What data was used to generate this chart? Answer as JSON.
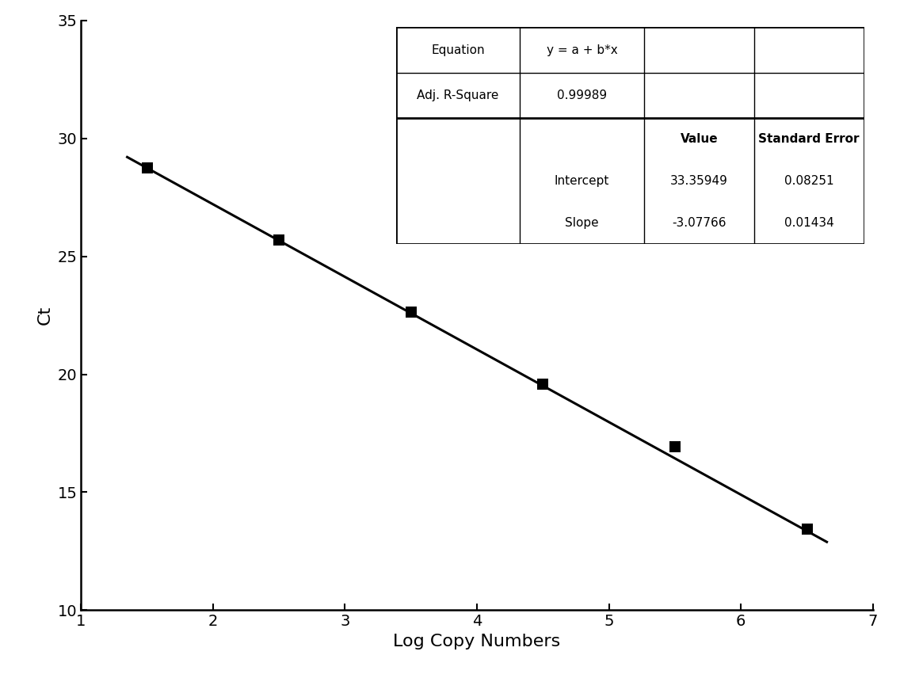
{
  "x_data": [
    1.5,
    2.5,
    3.5,
    4.5,
    5.5,
    6.5
  ],
  "y_data": [
    28.74,
    25.69,
    22.63,
    19.57,
    16.93,
    13.45
  ],
  "intercept": 33.35949,
  "slope": -3.07766,
  "x_line_start": 1.35,
  "x_line_end": 6.65,
  "xlim": [
    1,
    7
  ],
  "ylim": [
    10,
    35
  ],
  "xticks": [
    1,
    2,
    3,
    4,
    5,
    6,
    7
  ],
  "yticks": [
    10,
    15,
    20,
    25,
    30,
    35
  ],
  "xlabel": "Log Copy Numbers",
  "ylabel": "Ct",
  "line_color": "#000000",
  "marker_color": "#000000",
  "marker_size": 10,
  "line_width": 2.2,
  "table_data": {
    "equation_label": "Equation",
    "equation_value": "y = a + b*x",
    "r2_label": "Adj. R-Square",
    "r2_value": "0.99989",
    "value_header": "Value",
    "se_header": "Standard Error",
    "intercept_label": "Intercept",
    "intercept_value": "33.35949",
    "intercept_se": "0.08251",
    "slope_label": "Slope",
    "slope_value": "-3.07766",
    "slope_se": "0.01434"
  },
  "background_color": "#ffffff",
  "font_size_axis_label": 16,
  "font_size_tick": 14,
  "font_size_table": 11
}
